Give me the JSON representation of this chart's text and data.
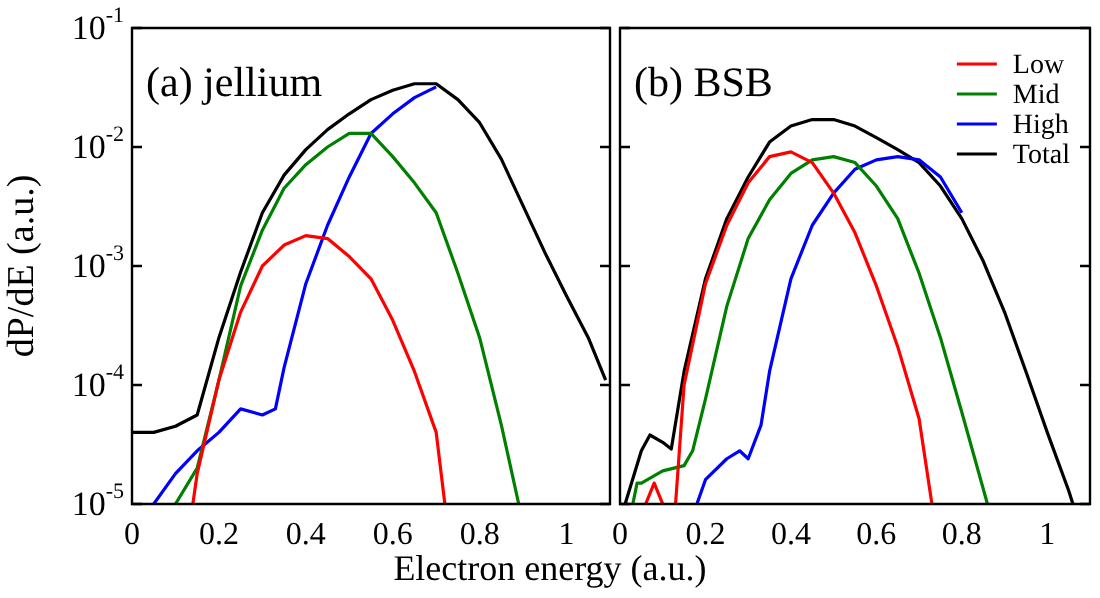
{
  "chart_data": [
    {
      "type": "line",
      "xlabel": "Electron energy (a.u.)",
      "ylabel": "dP/dE (a.u.)",
      "annotations": [
        "(a) jellium"
      ],
      "log": "y",
      "legend": false,
      "xlim": [
        0,
        1.1
      ],
      "xticks": [
        0,
        0.2,
        0.4,
        0.6,
        0.8,
        1
      ],
      "ylim": [
        1e-05,
        0.1
      ],
      "yticks": [
        {
          "value": 1e-05,
          "label": "10$^{-5}$"
        },
        {
          "value": 0.0001,
          "label": "10$^{-4}$"
        },
        {
          "value": 0.001,
          "label": "10$^{-3}$"
        },
        {
          "value": 0.01,
          "label": "10$^{-2}$"
        },
        {
          "value": 0.1,
          "label": "10$^{-1}$"
        }
      ],
      "series": [
        {
          "color": "#ff0000",
          "x": [
            0.14,
            0.15,
            0.2,
            0.25,
            0.3,
            0.35,
            0.4,
            0.45,
            0.5,
            0.55,
            0.6,
            0.65,
            0.7,
            0.72
          ],
          "values": [
            1e-05,
            1.8e-05,
            0.00011,
            0.00041,
            0.001,
            0.0015,
            0.0018,
            0.0017,
            0.0012,
            0.00078,
            0.00035,
            0.00013,
            4e-05,
            1e-05
          ]
        },
        {
          "color": "#008000",
          "x": [
            0.1,
            0.15,
            0.2,
            0.25,
            0.3,
            0.35,
            0.4,
            0.45,
            0.5,
            0.55,
            0.6,
            0.65,
            0.7,
            0.75,
            0.8,
            0.85,
            0.89
          ],
          "values": [
            1e-05,
            2e-05,
            0.00011,
            0.00068,
            0.002,
            0.0045,
            0.0071,
            0.01,
            0.013,
            0.013,
            0.0083,
            0.005,
            0.0028,
            0.00087,
            0.00025,
            4.6e-05,
            1e-05
          ]
        },
        {
          "color": "#0000ff",
          "x": [
            0.05,
            0.1,
            0.15,
            0.2,
            0.25,
            0.3,
            0.33,
            0.35,
            0.4,
            0.45,
            0.5,
            0.55,
            0.6,
            0.65,
            0.7
          ],
          "values": [
            1e-05,
            1.8e-05,
            2.8e-05,
            4e-05,
            6.3e-05,
            5.6e-05,
            6.3e-05,
            0.00014,
            0.00071,
            0.0022,
            0.0056,
            0.013,
            0.019,
            0.026,
            0.032
          ]
        },
        {
          "color": "#000000",
          "x": [
            0,
            0.05,
            0.1,
            0.15,
            0.2,
            0.25,
            0.3,
            0.35,
            0.4,
            0.45,
            0.5,
            0.55,
            0.6,
            0.65,
            0.7,
            0.75,
            0.8,
            0.85,
            0.9,
            0.95,
            1.0,
            1.05,
            1.09
          ],
          "values": [
            4e-05,
            4e-05,
            4.5e-05,
            5.6e-05,
            0.00025,
            0.00089,
            0.0028,
            0.0058,
            0.0095,
            0.014,
            0.019,
            0.025,
            0.03,
            0.034,
            0.034,
            0.025,
            0.016,
            0.0079,
            0.0032,
            0.0013,
            0.00056,
            0.00025,
            0.00011
          ]
        }
      ]
    },
    {
      "type": "line",
      "annotations": [
        "(b) BSB"
      ],
      "log": "y",
      "legend": "top right",
      "tick_labels": "x",
      "xlim": [
        0,
        1.1
      ],
      "xticks": [
        0,
        0.2,
        0.4,
        0.6,
        0.8,
        1
      ],
      "ylim": [
        1e-05,
        0.1
      ],
      "yticks": [
        {
          "value": 1e-05,
          "label": null
        },
        {
          "value": 0.0001,
          "label": null
        },
        {
          "value": 0.001,
          "label": null
        },
        {
          "value": 0.01,
          "label": null
        },
        {
          "value": 0.1,
          "label": null
        }
      ],
      "series": [
        {
          "name": "Low",
          "color": "#ff0000",
          "x": [
            0.06,
            0.08,
            0.1,
            0.11,
            0.13,
            0.15,
            0.2,
            0.25,
            0.3,
            0.35,
            0.4,
            0.45,
            0.5,
            0.55,
            0.6,
            0.65,
            0.7,
            0.73
          ],
          "values": [
            1e-05,
            1.5e-05,
            1e-05,
            null,
            1e-05,
            0.0001,
            0.00071,
            0.0022,
            0.005,
            0.0083,
            0.0091,
            0.0074,
            0.0041,
            0.0019,
            0.00068,
            0.00021,
            5.2e-05,
            1e-05
          ]
        },
        {
          "name": "Mid",
          "color": "#008000",
          "x": [
            0.03,
            0.04,
            0.05,
            0.1,
            0.15,
            0.17,
            0.2,
            0.25,
            0.3,
            0.35,
            0.4,
            0.45,
            0.5,
            0.55,
            0.6,
            0.65,
            0.7,
            0.75,
            0.8,
            0.86
          ],
          "values": [
            1e-05,
            1.5e-05,
            1.5e-05,
            1.9e-05,
            2.1e-05,
            2.8e-05,
            7.6e-05,
            0.00046,
            0.0017,
            0.0036,
            0.006,
            0.0078,
            0.0083,
            0.0074,
            0.0047,
            0.0025,
            0.00087,
            0.00025,
            5.9e-05,
            1e-05
          ]
        },
        {
          "name": "High",
          "color": "#0000ff",
          "x": [
            0.18,
            0.2,
            0.25,
            0.28,
            0.3,
            0.33,
            0.35,
            0.4,
            0.45,
            0.5,
            0.55,
            0.6,
            0.65,
            0.7,
            0.75,
            0.8
          ],
          "values": [
            1e-05,
            1.6e-05,
            2.4e-05,
            2.8e-05,
            2.4e-05,
            4.6e-05,
            0.00013,
            0.00078,
            0.0022,
            0.0041,
            0.0065,
            0.0078,
            0.0083,
            0.0078,
            0.0056,
            0.0028
          ]
        },
        {
          "name": "Total",
          "color": "#000000",
          "x": [
            0.012,
            0.05,
            0.07,
            0.1,
            0.12,
            0.15,
            0.2,
            0.25,
            0.3,
            0.35,
            0.4,
            0.45,
            0.5,
            0.55,
            0.6,
            0.65,
            0.7,
            0.75,
            0.8,
            0.85,
            0.9,
            0.95,
            1.0,
            1.05,
            1.06
          ],
          "values": [
            1e-05,
            2.8e-05,
            3.8e-05,
            3.3e-05,
            2.9e-05,
            0.00013,
            0.00078,
            0.0025,
            0.0056,
            0.011,
            0.015,
            0.017,
            0.017,
            0.015,
            0.012,
            0.0095,
            0.0074,
            0.0047,
            0.0025,
            0.0011,
            0.00041,
            0.00013,
            4e-05,
            1.3e-05,
            1e-05
          ]
        }
      ]
    }
  ]
}
